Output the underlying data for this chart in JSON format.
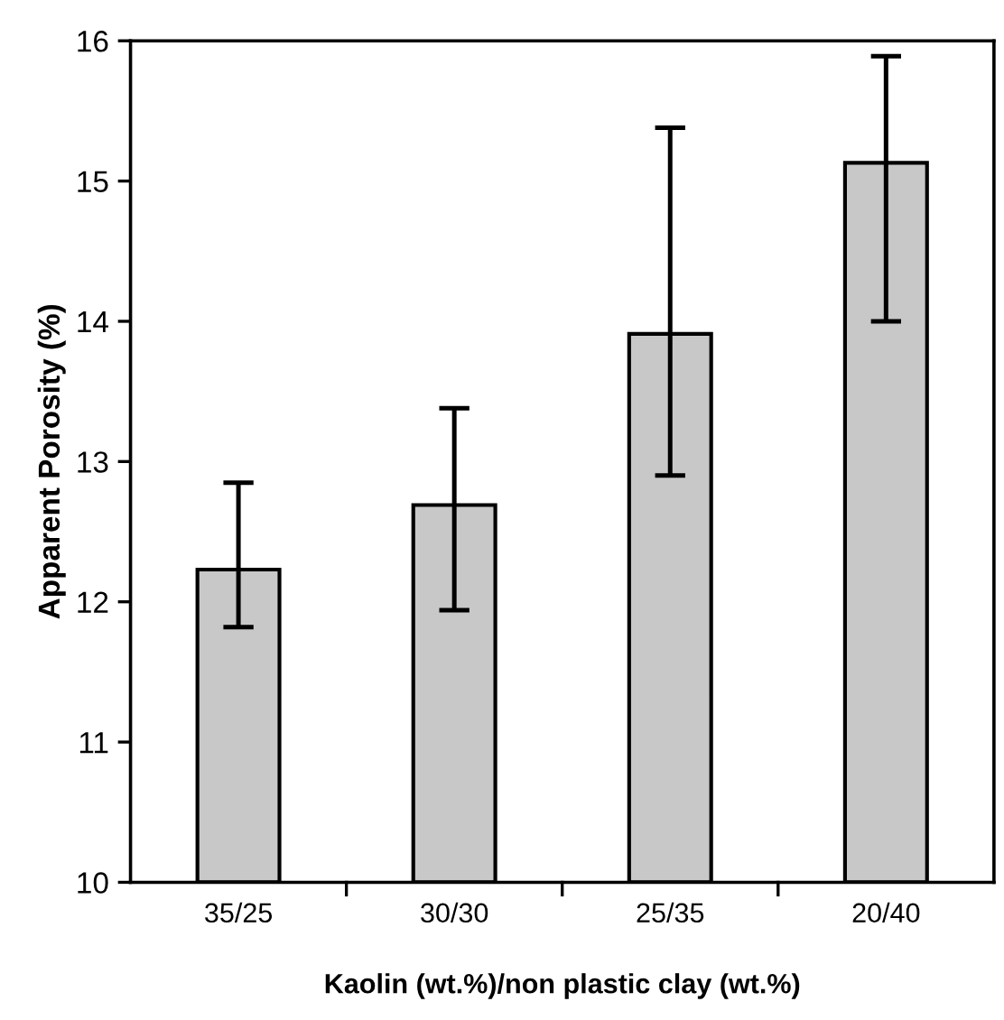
{
  "chart_data": {
    "type": "bar",
    "xlabel": "Kaolin (wt.%)/non plastic clay (wt.%)",
    "ylabel": "Apparent Porosity (%)",
    "categories": [
      "35/25",
      "30/30",
      "25/35",
      "20/40"
    ],
    "values": [
      12.23,
      12.69,
      13.91,
      15.13
    ],
    "errors": [
      [
        11.82,
        12.85
      ],
      [
        11.94,
        13.38
      ],
      [
        12.9,
        15.38
      ],
      [
        14.0,
        15.89
      ]
    ],
    "color": "#c8c8c8",
    "ylim": [
      10,
      16
    ],
    "yticks": [
      10,
      11,
      12,
      13,
      14,
      15,
      16
    ],
    "grid": false,
    "legend": false
  }
}
